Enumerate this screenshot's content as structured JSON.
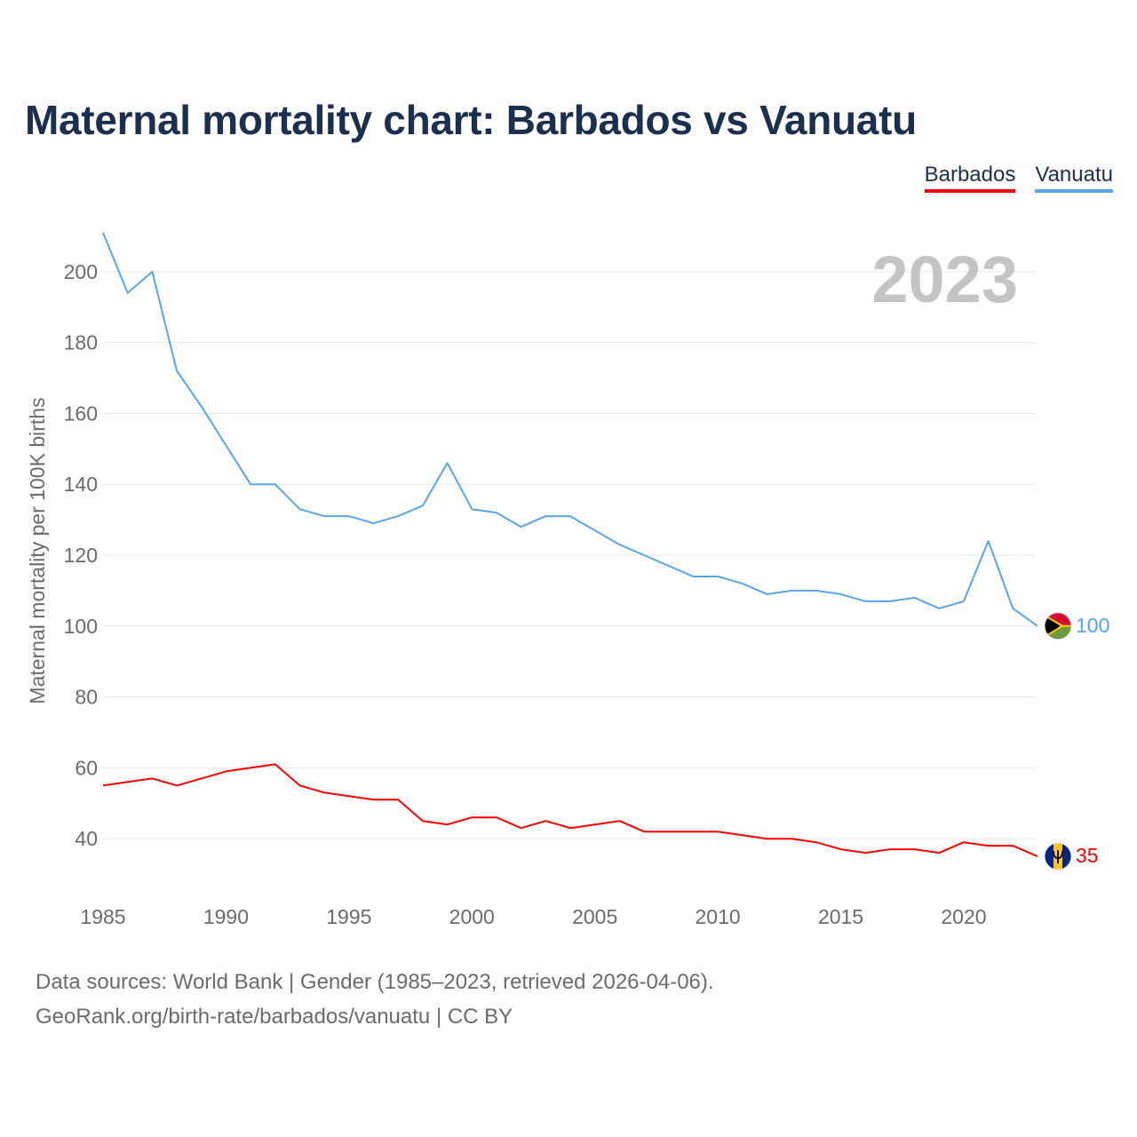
{
  "title": "Maternal mortality chart: Barbados vs Vanuatu",
  "legend": {
    "barbados": "Barbados",
    "vanuatu": "Vanuatu"
  },
  "colors": {
    "barbados": "#ff0000",
    "vanuatu": "#5aa5e6",
    "title": "#1b3050",
    "year": "#c4c4c4"
  },
  "footer": {
    "source": "Data sources: World Bank | Gender (1985–2023, retrieved 2026-04-06).",
    "url": "GeoRank.org/birth-rate/barbados/vanuatu | CC BY"
  },
  "chart_data": {
    "type": "line",
    "title": "Maternal mortality chart: Barbados vs Vanuatu",
    "ylabel": "Maternal mortality per 100K births",
    "xlabel": "",
    "year_label": "2023",
    "xlim": [
      1985,
      2023
    ],
    "ylim": [
      24,
      212
    ],
    "x_ticks": [
      1985,
      1990,
      1995,
      2000,
      2005,
      2010,
      2015,
      2020
    ],
    "y_ticks": [
      40,
      60,
      80,
      100,
      120,
      140,
      160,
      180,
      200
    ],
    "x": [
      1985,
      1986,
      1987,
      1988,
      1989,
      1990,
      1991,
      1992,
      1993,
      1994,
      1995,
      1996,
      1997,
      1998,
      1999,
      2000,
      2001,
      2002,
      2003,
      2004,
      2005,
      2006,
      2007,
      2008,
      2009,
      2010,
      2011,
      2012,
      2013,
      2014,
      2015,
      2016,
      2017,
      2018,
      2019,
      2020,
      2021,
      2022,
      2023
    ],
    "series": [
      {
        "name": "Vanuatu",
        "key": "vanuatu",
        "end_label": "100",
        "values": [
          211,
          194,
          200,
          172,
          162,
          151,
          140,
          140,
          133,
          131,
          131,
          129,
          131,
          134,
          146,
          133,
          132,
          128,
          131,
          131,
          127,
          123,
          120,
          117,
          114,
          114,
          112,
          109,
          110,
          110,
          109,
          107,
          107,
          108,
          105,
          107,
          124,
          105,
          100
        ]
      },
      {
        "name": "Barbados",
        "key": "barbados",
        "end_label": "35",
        "values": [
          55,
          56,
          57,
          55,
          57,
          59,
          60,
          61,
          55,
          53,
          52,
          51,
          51,
          45,
          44,
          46,
          46,
          43,
          45,
          43,
          44,
          45,
          42,
          42,
          42,
          42,
          41,
          40,
          40,
          39,
          37,
          36,
          37,
          37,
          36,
          39,
          38,
          38,
          35
        ]
      }
    ]
  }
}
